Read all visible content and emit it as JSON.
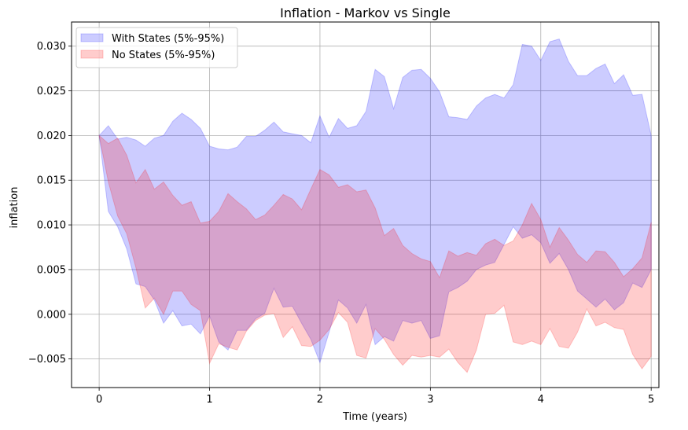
{
  "chart_data": {
    "type": "area",
    "title": "Inflation - Markov vs Single",
    "xlabel": "Time (years)",
    "ylabel": "inflation",
    "xlim": [
      -0.25,
      5.07
    ],
    "ylim": [
      -0.0082,
      0.0327
    ],
    "xticks": [
      0,
      1,
      2,
      3,
      4,
      5
    ],
    "yticks": [
      -0.005,
      0.0,
      0.005,
      0.01,
      0.015,
      0.02,
      0.025,
      0.03
    ],
    "xtick_labels": [
      "0",
      "1",
      "2",
      "3",
      "4",
      "5"
    ],
    "ytick_labels": [
      "−0.005",
      "0.000",
      "0.005",
      "0.010",
      "0.015",
      "0.020",
      "0.025",
      "0.030"
    ],
    "grid": true,
    "legend_position": "top-left",
    "x": [
      0.0,
      0.083,
      0.167,
      0.25,
      0.333,
      0.417,
      0.5,
      0.583,
      0.667,
      0.75,
      0.833,
      0.917,
      1.0,
      1.083,
      1.167,
      1.25,
      1.333,
      1.417,
      1.5,
      1.583,
      1.667,
      1.75,
      1.833,
      1.917,
      2.0,
      2.083,
      2.167,
      2.25,
      2.333,
      2.417,
      2.5,
      2.583,
      2.667,
      2.75,
      2.833,
      2.917,
      3.0,
      3.083,
      3.167,
      3.25,
      3.333,
      3.417,
      3.5,
      3.583,
      3.667,
      3.75,
      3.833,
      3.917,
      4.0,
      4.083,
      4.167,
      4.25,
      4.333,
      4.417,
      4.5,
      4.583,
      4.667,
      4.75,
      4.833,
      4.917,
      5.0
    ],
    "series": [
      {
        "name": "With States (5%-95%)",
        "color": "#0000ff",
        "upper": [
          0.02,
          0.0211,
          0.0196,
          0.0198,
          0.0195,
          0.0188,
          0.0197,
          0.02,
          0.0216,
          0.0225,
          0.0218,
          0.0208,
          0.0188,
          0.0185,
          0.0184,
          0.0187,
          0.0199,
          0.0199,
          0.0206,
          0.0215,
          0.0204,
          0.0202,
          0.02,
          0.0192,
          0.0222,
          0.0198,
          0.0219,
          0.0208,
          0.0211,
          0.0227,
          0.0274,
          0.0266,
          0.023,
          0.0265,
          0.0273,
          0.0274,
          0.0264,
          0.0249,
          0.0221,
          0.022,
          0.0218,
          0.0233,
          0.0242,
          0.0246,
          0.0242,
          0.0257,
          0.0302,
          0.03,
          0.0284,
          0.0305,
          0.0308,
          0.0283,
          0.0267,
          0.0267,
          0.0275,
          0.028,
          0.0258,
          0.0268,
          0.0245,
          0.0246,
          0.02
        ],
        "lower": [
          0.02,
          0.0115,
          0.0098,
          0.0073,
          0.0034,
          0.0031,
          0.0016,
          -0.001,
          0.0004,
          -0.0013,
          -0.0011,
          -0.0022,
          -0.0002,
          -0.0031,
          -0.004,
          -0.0018,
          -0.0018,
          -0.0005,
          0.0001,
          0.0029,
          0.0008,
          0.0009,
          -0.001,
          -0.0028,
          -0.0054,
          -0.002,
          0.0016,
          0.0007,
          -0.001,
          0.0011,
          -0.0034,
          -0.0025,
          -0.003,
          -0.0007,
          -0.001,
          -0.0007,
          -0.0027,
          -0.0024,
          0.0025,
          0.003,
          0.0037,
          0.005,
          0.0055,
          0.0058,
          0.0078,
          0.0098,
          0.0085,
          0.0089,
          0.008,
          0.0057,
          0.0068,
          0.005,
          0.0026,
          0.0017,
          0.0008,
          0.0017,
          0.0005,
          0.0013,
          0.0035,
          0.003,
          0.005
        ]
      },
      {
        "name": "No States (5%-95%)",
        "color": "#ff0000",
        "upper": [
          0.02,
          0.0191,
          0.0197,
          0.0178,
          0.0147,
          0.0162,
          0.014,
          0.0148,
          0.0133,
          0.0122,
          0.0126,
          0.0102,
          0.0104,
          0.0115,
          0.0135,
          0.0126,
          0.0118,
          0.0106,
          0.0111,
          0.0122,
          0.0134,
          0.0129,
          0.0117,
          0.014,
          0.0162,
          0.0156,
          0.0142,
          0.0145,
          0.0137,
          0.0139,
          0.0119,
          0.0088,
          0.0096,
          0.0077,
          0.0068,
          0.0062,
          0.0059,
          0.0041,
          0.0071,
          0.0065,
          0.0069,
          0.0066,
          0.0079,
          0.0084,
          0.0077,
          0.0082,
          0.01,
          0.0124,
          0.0106,
          0.0075,
          0.0097,
          0.0083,
          0.0067,
          0.0058,
          0.0071,
          0.007,
          0.0058,
          0.0042,
          0.0051,
          0.0063,
          0.0103
        ],
        "lower": [
          0.02,
          0.0148,
          0.011,
          0.009,
          0.0052,
          0.0007,
          0.0018,
          0.0,
          0.0026,
          0.0026,
          0.0011,
          0.0004,
          -0.0055,
          -0.0033,
          -0.0037,
          -0.004,
          -0.0019,
          -0.0007,
          -0.0001,
          0.0001,
          -0.0026,
          -0.0014,
          -0.0035,
          -0.0036,
          -0.0029,
          -0.0017,
          0.0002,
          -0.0009,
          -0.0046,
          -0.0049,
          -0.0016,
          -0.0028,
          -0.0045,
          -0.0057,
          -0.0046,
          -0.0048,
          -0.0046,
          -0.0048,
          -0.0039,
          -0.0054,
          -0.0065,
          -0.004,
          0.0,
          0.0001,
          0.001,
          -0.0031,
          -0.0034,
          -0.003,
          -0.0034,
          -0.0016,
          -0.0036,
          -0.0038,
          -0.002,
          0.0006,
          -0.0013,
          -0.0009,
          -0.0015,
          -0.0017,
          -0.0045,
          -0.0061,
          -0.0047
        ]
      }
    ]
  }
}
